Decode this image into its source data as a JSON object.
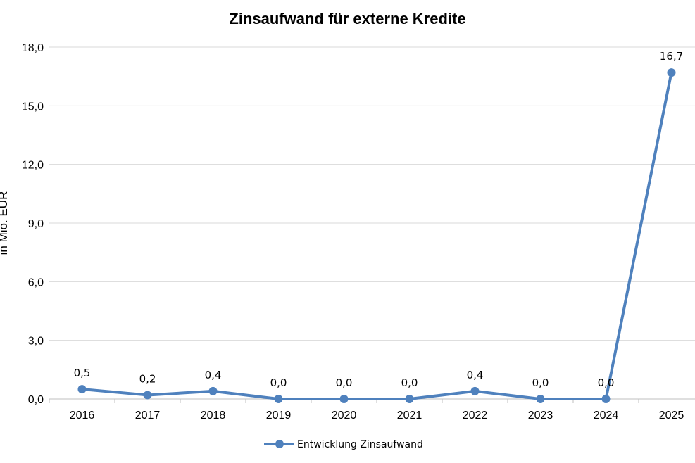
{
  "chart_data": {
    "type": "line",
    "title": "Zinsaufwand für externe Kredite",
    "ylabel": "in Mio. EUR",
    "xlabel": "",
    "categories": [
      "2016",
      "2017",
      "2018",
      "2019",
      "2020",
      "2021",
      "2022",
      "2023",
      "2024",
      "2025"
    ],
    "series": [
      {
        "name": "Entwicklung Zinsaufwand",
        "values": [
          0.5,
          0.2,
          0.4,
          0.0,
          0.0,
          0.0,
          0.4,
          0.0,
          0.0,
          16.7
        ],
        "labels": [
          "0,5",
          "0,2",
          "0,4",
          "0,0",
          "0,0",
          "0,0",
          "0,4",
          "0,0",
          "0,0",
          "16,7"
        ],
        "color": "#4f81bd"
      }
    ],
    "ylim": [
      0,
      18
    ],
    "yticks": [
      0,
      3,
      6,
      9,
      12,
      15,
      18
    ],
    "ytick_labels": [
      "0,0",
      "3,0",
      "6,0",
      "9,0",
      "12,0",
      "15,0",
      "18,0"
    ],
    "grid": true,
    "legend_position": "bottom-center"
  }
}
